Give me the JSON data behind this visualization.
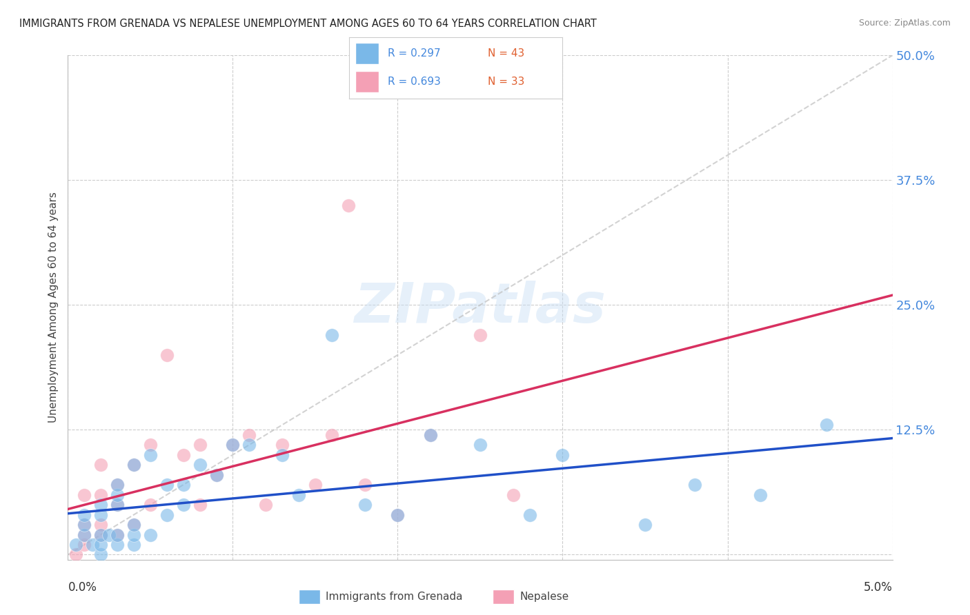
{
  "title": "IMMIGRANTS FROM GRENADA VS NEPALESE UNEMPLOYMENT AMONG AGES 60 TO 64 YEARS CORRELATION CHART",
  "source": "Source: ZipAtlas.com",
  "ylabel": "Unemployment Among Ages 60 to 64 years",
  "xlim": [
    0.0,
    0.05
  ],
  "ylim": [
    -0.005,
    0.5
  ],
  "ytick_vals": [
    0.0,
    0.125,
    0.25,
    0.375,
    0.5
  ],
  "ytick_labels": [
    "",
    "12.5%",
    "25.0%",
    "37.5%",
    "50.0%"
  ],
  "xtick_vals": [
    0.0,
    0.01,
    0.02,
    0.03,
    0.04,
    0.05
  ],
  "color_blue": "#7ab8e8",
  "color_pink": "#f4a0b5",
  "color_trendline_blue": "#2050c8",
  "color_trendline_pink": "#d83060",
  "color_diagonal": "#c0c0c0",
  "watermark": "ZIPatlas",
  "blue_x": [
    0.0005,
    0.001,
    0.001,
    0.001,
    0.0015,
    0.002,
    0.002,
    0.002,
    0.002,
    0.002,
    0.0025,
    0.003,
    0.003,
    0.003,
    0.003,
    0.003,
    0.004,
    0.004,
    0.004,
    0.004,
    0.005,
    0.005,
    0.006,
    0.006,
    0.007,
    0.007,
    0.008,
    0.009,
    0.01,
    0.011,
    0.013,
    0.014,
    0.016,
    0.018,
    0.02,
    0.022,
    0.025,
    0.028,
    0.03,
    0.035,
    0.038,
    0.042,
    0.046
  ],
  "blue_y": [
    0.01,
    0.02,
    0.03,
    0.04,
    0.01,
    0.0,
    0.01,
    0.02,
    0.04,
    0.05,
    0.02,
    0.01,
    0.02,
    0.05,
    0.06,
    0.07,
    0.01,
    0.02,
    0.03,
    0.09,
    0.02,
    0.1,
    0.04,
    0.07,
    0.05,
    0.07,
    0.09,
    0.08,
    0.11,
    0.11,
    0.1,
    0.06,
    0.22,
    0.05,
    0.04,
    0.12,
    0.11,
    0.04,
    0.1,
    0.03,
    0.07,
    0.06,
    0.13
  ],
  "pink_x": [
    0.0005,
    0.001,
    0.001,
    0.001,
    0.001,
    0.002,
    0.002,
    0.002,
    0.002,
    0.003,
    0.003,
    0.003,
    0.004,
    0.004,
    0.005,
    0.005,
    0.006,
    0.007,
    0.008,
    0.008,
    0.009,
    0.01,
    0.011,
    0.012,
    0.013,
    0.015,
    0.016,
    0.017,
    0.018,
    0.02,
    0.022,
    0.025,
    0.027
  ],
  "pink_y": [
    0.0,
    0.01,
    0.02,
    0.03,
    0.06,
    0.02,
    0.03,
    0.06,
    0.09,
    0.02,
    0.05,
    0.07,
    0.03,
    0.09,
    0.05,
    0.11,
    0.2,
    0.1,
    0.05,
    0.11,
    0.08,
    0.11,
    0.12,
    0.05,
    0.11,
    0.07,
    0.12,
    0.35,
    0.07,
    0.04,
    0.12,
    0.22,
    0.06
  ]
}
